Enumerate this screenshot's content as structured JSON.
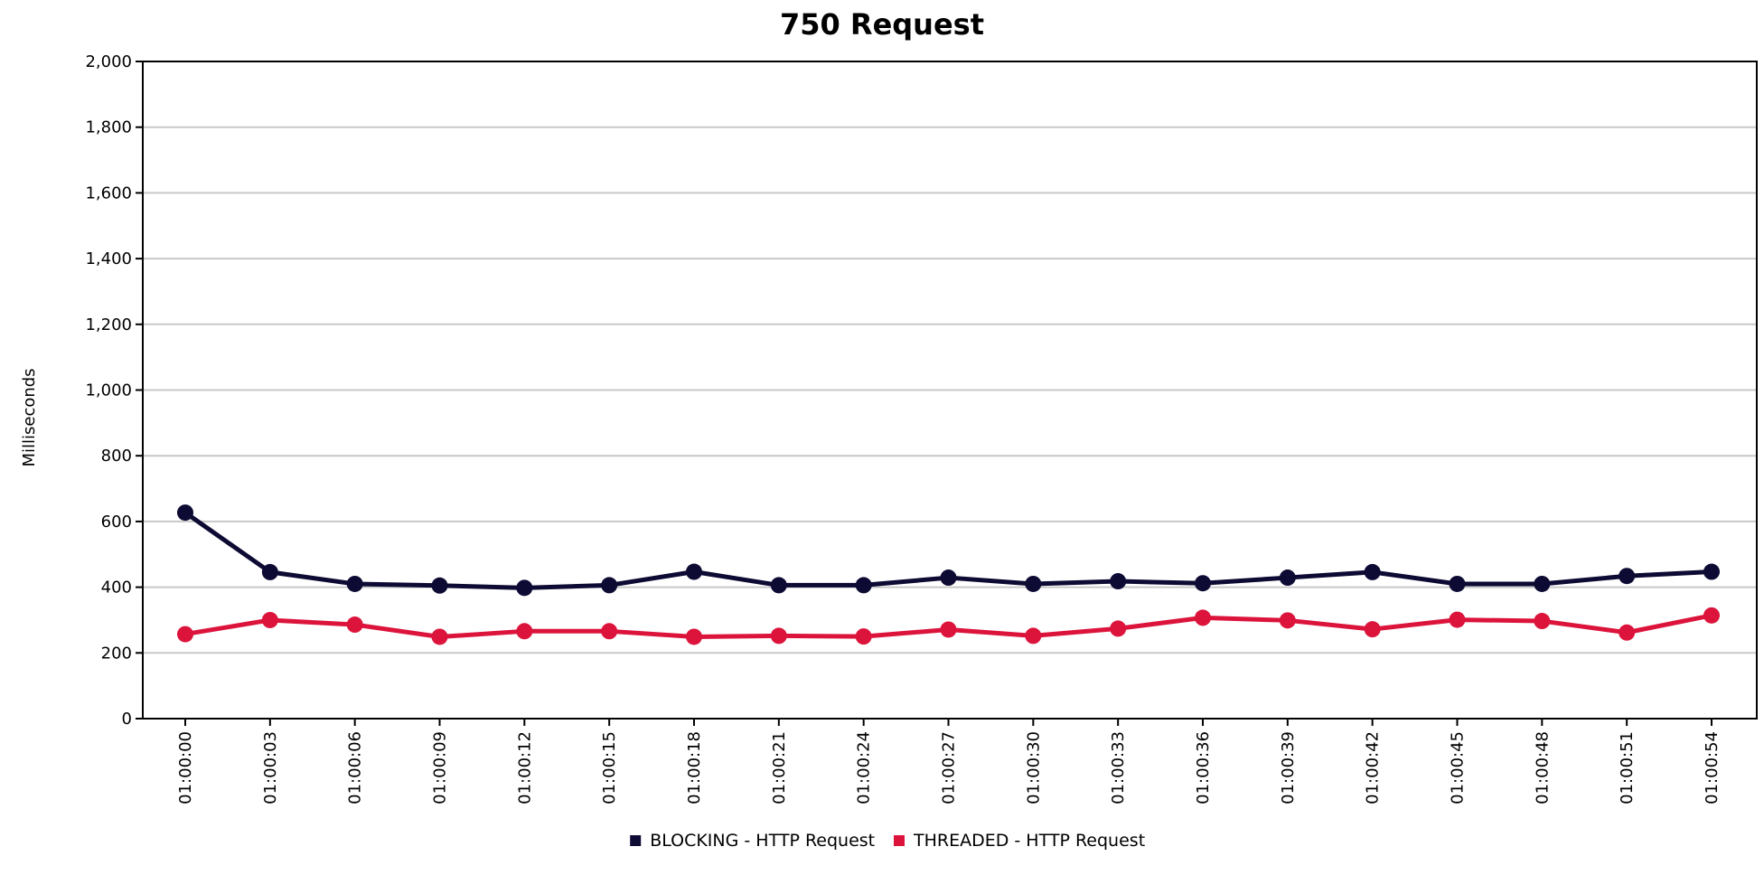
{
  "chart_data": {
    "type": "line",
    "title": "750 Request",
    "xlabel": "",
    "ylabel": "Milliseconds",
    "ylim": [
      0,
      2000
    ],
    "yticks": [
      0,
      200,
      400,
      600,
      800,
      1000,
      1200,
      1400,
      1600,
      1800,
      2000
    ],
    "ytick_labels": [
      "0",
      "200",
      "400",
      "600",
      "800",
      "1,000",
      "1,200",
      "1,400",
      "1,600",
      "1,800",
      "2,000"
    ],
    "grid": true,
    "legend_position": "bottom-center",
    "categories": [
      "01:00:00",
      "01:00:03",
      "01:00:06",
      "01:00:09",
      "01:00:12",
      "01:00:15",
      "01:00:18",
      "01:00:21",
      "01:00:24",
      "01:00:27",
      "01:00:30",
      "01:00:33",
      "01:00:36",
      "01:00:39",
      "01:00:42",
      "01:00:45",
      "01:00:48",
      "01:00:51",
      "01:00:54"
    ],
    "series": [
      {
        "name": "BLOCKING - HTTP Request",
        "color": "#0d0a33",
        "values": [
          627,
          446,
          410,
          405,
          398,
          406,
          447,
          406,
          406,
          429,
          410,
          418,
          412,
          429,
          446,
          410,
          410,
          434,
          447
        ]
      },
      {
        "name": "THREADED - HTTP Request",
        "color": "#dc143c",
        "values": [
          257,
          300,
          286,
          249,
          266,
          266,
          249,
          252,
          250,
          271,
          252,
          274,
          307,
          299,
          272,
          301,
          297,
          262,
          314
        ]
      }
    ]
  }
}
